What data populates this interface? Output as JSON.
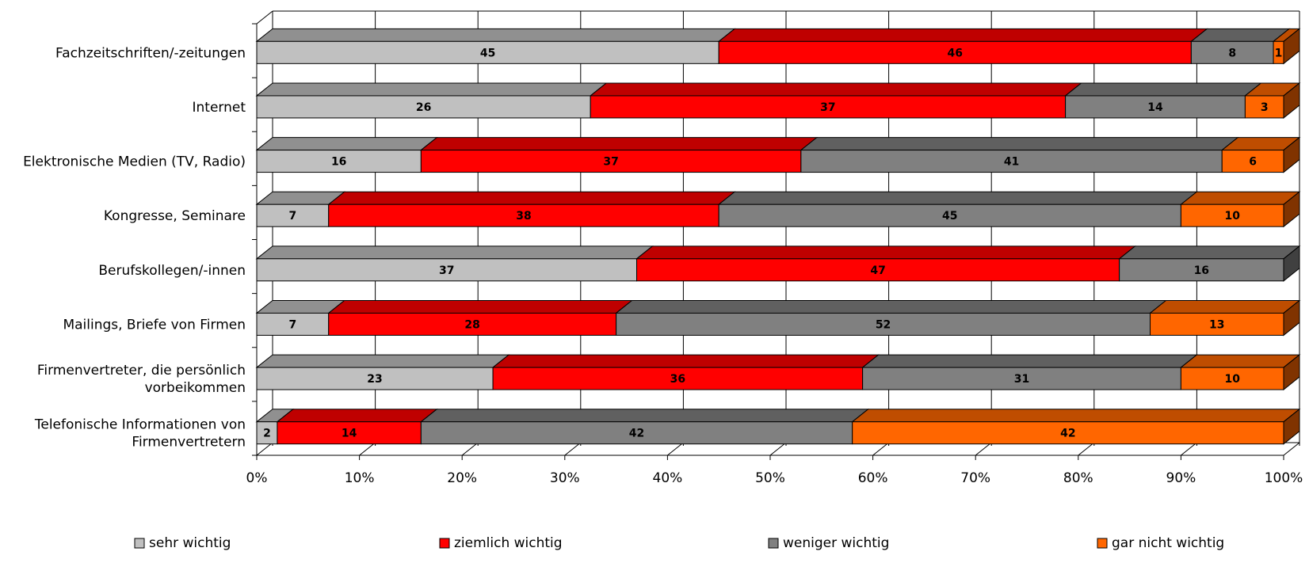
{
  "chart_data": {
    "type": "bar",
    "orientation": "horizontal",
    "stacked": "percent",
    "three_d": true,
    "grid": true,
    "legend_position": "bottom",
    "title": "",
    "xlabel": "",
    "ylabel": "",
    "xlim": [
      0,
      100
    ],
    "x_ticks": [
      "0%",
      "10%",
      "20%",
      "30%",
      "40%",
      "50%",
      "60%",
      "70%",
      "80%",
      "90%",
      "100%"
    ],
    "categories": [
      [
        "Fachzeitschriften/-zeitungen"
      ],
      [
        "Internet"
      ],
      [
        "Elektronische Medien (TV, Radio)"
      ],
      [
        "Kongresse, Seminare"
      ],
      [
        "Berufskollegen/-innen"
      ],
      [
        "Mailings, Briefe von Firmen"
      ],
      [
        "Firmenvertreter, die persönlich",
        "vorbeikommen"
      ],
      [
        "Telefonische Informationen von",
        "Firmenvertretern"
      ]
    ],
    "series": [
      {
        "name": "sehr wichtig",
        "color": "#c0c0c0",
        "values": [
          45,
          26,
          16,
          7,
          37,
          7,
          23,
          2
        ]
      },
      {
        "name": "ziemlich wichtig",
        "color": "#ff0000",
        "values": [
          46,
          37,
          37,
          38,
          47,
          28,
          36,
          14
        ]
      },
      {
        "name": "weniger wichtig",
        "color": "#808080",
        "values": [
          8,
          14,
          41,
          45,
          16,
          52,
          31,
          42
        ]
      },
      {
        "name": "gar nicht wichtig",
        "color": "#ff6600",
        "values": [
          1,
          3,
          6,
          10,
          0,
          13,
          10,
          42
        ]
      }
    ]
  }
}
